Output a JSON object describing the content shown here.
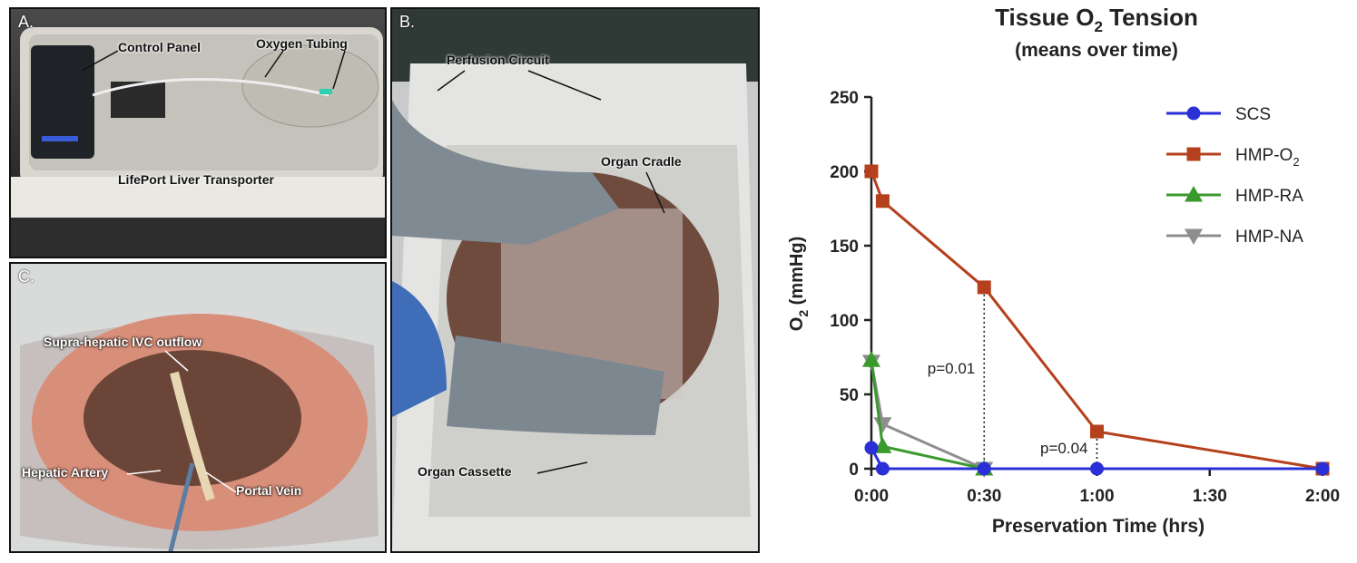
{
  "panels": {
    "a": {
      "letter": "A.",
      "labels": {
        "control_panel": "Control Panel",
        "oxygen_tubing": "Oxygen Tubing",
        "transporter": "LifePort Liver Transporter"
      }
    },
    "b": {
      "letter": "B.",
      "labels": {
        "perfusion_circuit": "Perfusion Circuit",
        "organ_cradle": "Organ Cradle",
        "organ_cassette": "Organ Cassette"
      }
    },
    "c": {
      "letter": "C.",
      "labels": {
        "ivc_outflow": "Supra-hepatic IVC outflow",
        "hepatic_artery": "Hepatic Artery",
        "portal_vein": "Portal Vein"
      }
    }
  },
  "chart_data": {
    "type": "line",
    "title": "Tissue O",
    "title_sub": "2",
    "title_tail": " Tension",
    "subtitle": "(means over time)",
    "xlabel": "Preservation  Time  (hrs)",
    "ylabel_main": "O",
    "ylabel_sub": "2",
    "ylabel_tail": " (mmHg)",
    "x_unit": "minutes",
    "xlim": [
      0,
      120
    ],
    "ylim": [
      0,
      250
    ],
    "x_ticks": [
      0,
      30,
      60,
      90,
      120
    ],
    "x_tick_labels": [
      "0:00",
      "0:30",
      "1:00",
      "1:30",
      "2:00"
    ],
    "y_ticks": [
      0,
      50,
      100,
      150,
      200,
      250
    ],
    "y_tick_labels": [
      "0",
      "50",
      "100",
      "150",
      "200",
      "250"
    ],
    "series": [
      {
        "name": "SCS",
        "color": "#2b2fd6",
        "marker": "circle",
        "x": [
          0,
          3,
          30,
          60,
          120
        ],
        "y": [
          14,
          0,
          0,
          0,
          0
        ]
      },
      {
        "name": "HMP-O",
        "name_sub": "2",
        "color": "#b5401d",
        "marker": "square",
        "x": [
          0,
          3,
          30,
          60,
          120
        ],
        "y": [
          200,
          180,
          122,
          25,
          0
        ]
      },
      {
        "name": "HMP-RA",
        "color": "#3b9a2e",
        "marker": "triangle-up",
        "x": [
          0,
          3,
          30
        ],
        "y": [
          73,
          15,
          0
        ]
      },
      {
        "name": "HMP-NA",
        "color": "#8e8e8e",
        "marker": "triangle-down",
        "x": [
          0,
          3,
          30
        ],
        "y": [
          72,
          30,
          0
        ]
      }
    ],
    "annotations": [
      {
        "text": "p=0.01",
        "x": 30,
        "y_top": 122
      },
      {
        "text": "p=0.04",
        "x": 60,
        "y_top": 25
      }
    ],
    "legend_position": "top-right",
    "grid": false
  }
}
